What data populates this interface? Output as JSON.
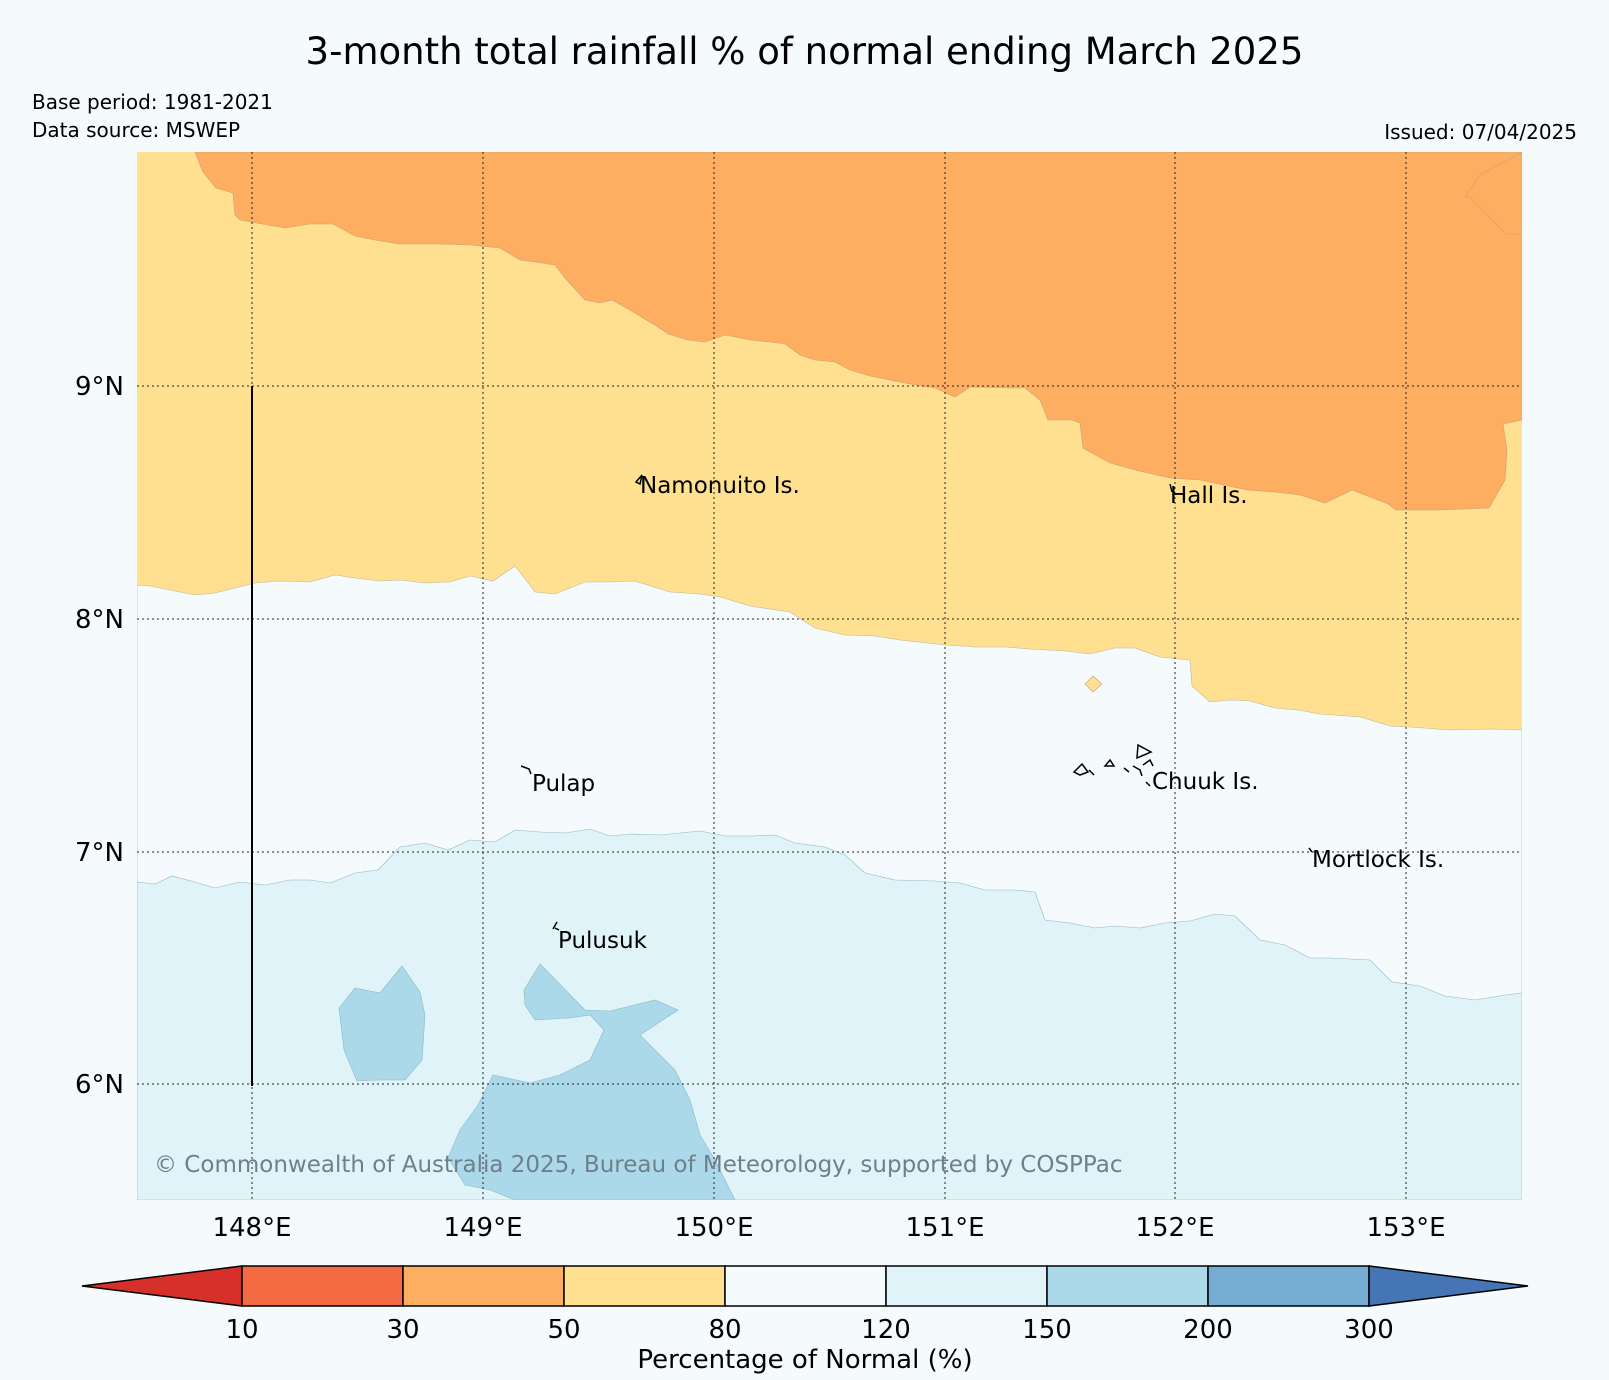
{
  "title": "3-month total rainfall % of normal ending March 2025",
  "base_period": "Base period: 1981-2021",
  "data_source": "Data source: MSWEP",
  "issued": "Issued: 07/04/2025",
  "copyright": "© Commonwealth of Australia 2025, Bureau of Meteorology, supported by COSPPac",
  "map": {
    "lat_ticks": [
      "9°N",
      "8°N",
      "7°N",
      "6°N"
    ],
    "lon_ticks": [
      "148°E",
      "149°E",
      "150°E",
      "151°E",
      "152°E",
      "153°E"
    ],
    "places": [
      "Namonuito Is.",
      "Hall Is.",
      "Pulap",
      "Chuuk Is.",
      "Mortlock Is.",
      "Pulusuk"
    ]
  },
  "colorbar": {
    "label": "Percentage of Normal (%)",
    "ticks": [
      "10",
      "30",
      "50",
      "80",
      "120",
      "150",
      "200",
      "300"
    ],
    "colors": [
      "#d7302a",
      "#f46b43",
      "#fdae61",
      "#fee090",
      "#f5fafd",
      "#e0f3f8",
      "#abd9e9",
      "#74add1",
      "#4575b4"
    ]
  },
  "legend_colors": {
    "50-80": "#fee090",
    "30-50": "#fdae61",
    "80-120": "#f5fafd",
    "120-150": "#e0f3f8",
    "150-200": "#abd9e9"
  }
}
